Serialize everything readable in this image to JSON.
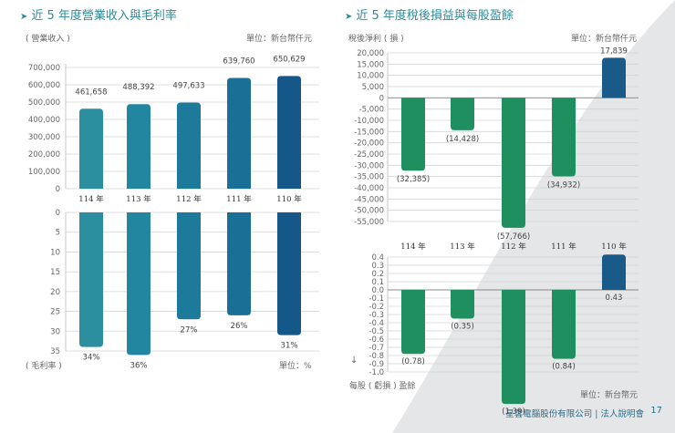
{
  "left_title": "近 5 年度營業收入與毛利率",
  "right_title": "近 5 年度稅後損益與每股盈餘",
  "footer": {
    "company": "星雲電腦股份有限公司 | 法人說明會",
    "page": "17"
  },
  "chart_data": [
    {
      "type": "bar",
      "categories": [
        "114 年",
        "113 年",
        "112 年",
        "111 年",
        "110 年"
      ],
      "values": [
        461658,
        488392,
        497633,
        639760,
        650629
      ],
      "value_labels": [
        "461,658",
        "488,392",
        "497,633",
        "639,760",
        "650,629"
      ],
      "ylabel": "( 營業收入 )",
      "unit": "單位：新台幣仟元",
      "ylim": [
        0,
        700000
      ],
      "yticks": [
        "700,000",
        "600,000",
        "500,000",
        "400,000",
        "300,000",
        "200,000",
        "100,000",
        "0"
      ],
      "grid": true,
      "colors": [
        "#2c8fa0",
        "#2286a0",
        "#1c7a9a",
        "#1a6f96",
        "#16578a"
      ]
    },
    {
      "type": "bar",
      "categories": [
        "114 年",
        "113 年",
        "112 年",
        "111 年",
        "110 年"
      ],
      "values": [
        34,
        36,
        27,
        26,
        31
      ],
      "value_labels": [
        "34%",
        "36%",
        "27%",
        "26%",
        "31%"
      ],
      "ylabel": "( 毛利率 )",
      "unit": "單位：%",
      "ylim": [
        0,
        35
      ],
      "inverted": true,
      "yticks": [
        "0",
        "5",
        "10",
        "15",
        "20",
        "25",
        "30",
        "35"
      ],
      "grid": true,
      "colors": [
        "#2c8fa0",
        "#2286a0",
        "#1c7a9a",
        "#1a6f96",
        "#16578a"
      ]
    },
    {
      "type": "bar",
      "categories": [
        "114 年",
        "113 年",
        "112 年",
        "111 年",
        "110 年"
      ],
      "values": [
        -32385,
        -14428,
        -57766,
        -34932,
        17839
      ],
      "value_labels": [
        "(32,385)",
        "(14,428)",
        "(57,766)",
        "(34,932)",
        "17,839"
      ],
      "ylabel": "稅後淨利 ( 損 )",
      "unit": "單位：新台幣仟元",
      "ylim": [
        -55000,
        20000
      ],
      "yticks": [
        "20,000",
        "15,000",
        "10,000",
        "5,000",
        "0",
        "-5,000",
        "-10,000",
        "-15,000",
        "-20,000",
        "-25,000",
        "-30,000",
        "-35,000",
        "-40,000",
        "-45,000",
        "-50,000",
        "-55,000"
      ],
      "grid": true,
      "colors": [
        "#1f8f60",
        "#1f8f60",
        "#1f8f60",
        "#1f8f60",
        "#1a5a88"
      ]
    },
    {
      "type": "bar",
      "categories": [
        "114 年",
        "113 年",
        "112 年",
        "111 年",
        "110 年"
      ],
      "values": [
        -0.78,
        -0.35,
        -1.39,
        -0.84,
        0.43
      ],
      "value_labels": [
        "(0.78)",
        "(0.35)",
        "(1.39)",
        "(0.84)",
        "0.43"
      ],
      "ylabel": "每股 ( 虧損 ) 盈餘",
      "unit": "單位：新台幣元",
      "ylim": [
        -1.0,
        0.4
      ],
      "yticks": [
        "0.4",
        "0.3",
        "0.2",
        "0.1",
        "0.0",
        "-0.1",
        "-0.2",
        "-0.3",
        "-0.4",
        "-0.5",
        "-0.6",
        "-0.7",
        "-0.8",
        "-0.9",
        "-1.0"
      ],
      "grid": true,
      "colors": [
        "#1f8f60",
        "#1f8f60",
        "#1f8f60",
        "#1f8f60",
        "#1a5a88"
      ]
    }
  ]
}
